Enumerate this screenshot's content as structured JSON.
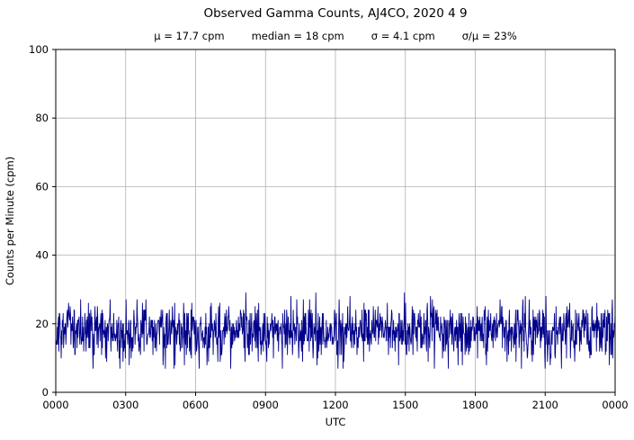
{
  "chart_title": "Observed Gamma Counts, AJ4CO, 2020 4 9",
  "stats": {
    "mu": "μ = 17.7 cpm",
    "median": "median = 18 cpm",
    "sigma": "σ = 4.1 cpm",
    "sigma_over_mu": "σ/μ = 23%"
  },
  "chart_data": {
    "type": "line",
    "title": "Observed Gamma Counts, AJ4CO, 2020 4 9",
    "subtitle_annotations": [
      "μ = 17.7 cpm",
      "median = 18 cpm",
      "σ = 4.1 cpm",
      "σ/μ = 23%"
    ],
    "xlabel": "UTC",
    "ylabel": "Counts per Minute (cpm)",
    "xlim_hours": [
      0,
      24
    ],
    "ylim": [
      0,
      100
    ],
    "xtick_hours": [
      0,
      3,
      6,
      9,
      12,
      15,
      18,
      21,
      24
    ],
    "xtick_labels": [
      "0000",
      "0300",
      "0600",
      "0900",
      "1200",
      "1500",
      "1800",
      "2100",
      "0000"
    ],
    "ytick_values": [
      0,
      20,
      40,
      60,
      80,
      100
    ],
    "grid": true,
    "grid_color": "#b0b0b0",
    "axis_color": "#000000",
    "line_color": "#00008b",
    "background": "#ffffff",
    "series": [
      {
        "name": "observed-gamma-counts",
        "points_per_day": 1440,
        "distribution": "normal-rounded",
        "mean": 17.7,
        "median": 18,
        "sigma": 4.1,
        "observed_min": 7,
        "observed_max": 33,
        "seed": 20200409
      }
    ]
  }
}
